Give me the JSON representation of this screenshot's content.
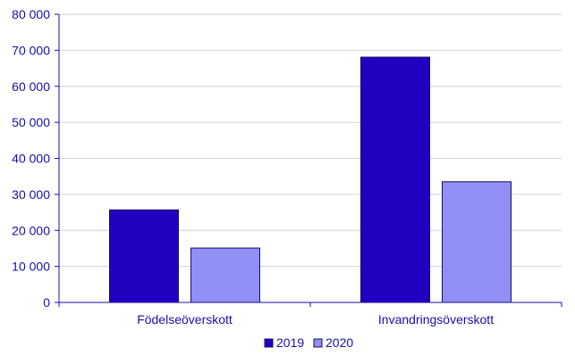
{
  "chart_data": {
    "type": "bar",
    "categories": [
      "Födelseöverskott",
      "Invandringsöverskott"
    ],
    "series": [
      {
        "name": "2019",
        "values": [
          25700,
          68100
        ],
        "color": "#2200c0"
      },
      {
        "name": "2020",
        "values": [
          15100,
          33500
        ],
        "color": "#8f8ff5"
      }
    ],
    "ylim": [
      0,
      80000
    ],
    "yticks": [
      0,
      10000,
      20000,
      30000,
      40000,
      50000,
      60000,
      70000,
      80000
    ],
    "ytick_labels": [
      "0",
      "10 000",
      "20 000",
      "30 000",
      "40 000",
      "50 000",
      "60 000",
      "70 000",
      "80 000"
    ],
    "grid": true,
    "legend_position": "bottom-center",
    "title": "",
    "xlabel": "",
    "ylabel": ""
  },
  "colors": {
    "axis": "#1a0dab",
    "gridline": "#d0d0e0",
    "bar_stroke": "#1a0d60"
  }
}
